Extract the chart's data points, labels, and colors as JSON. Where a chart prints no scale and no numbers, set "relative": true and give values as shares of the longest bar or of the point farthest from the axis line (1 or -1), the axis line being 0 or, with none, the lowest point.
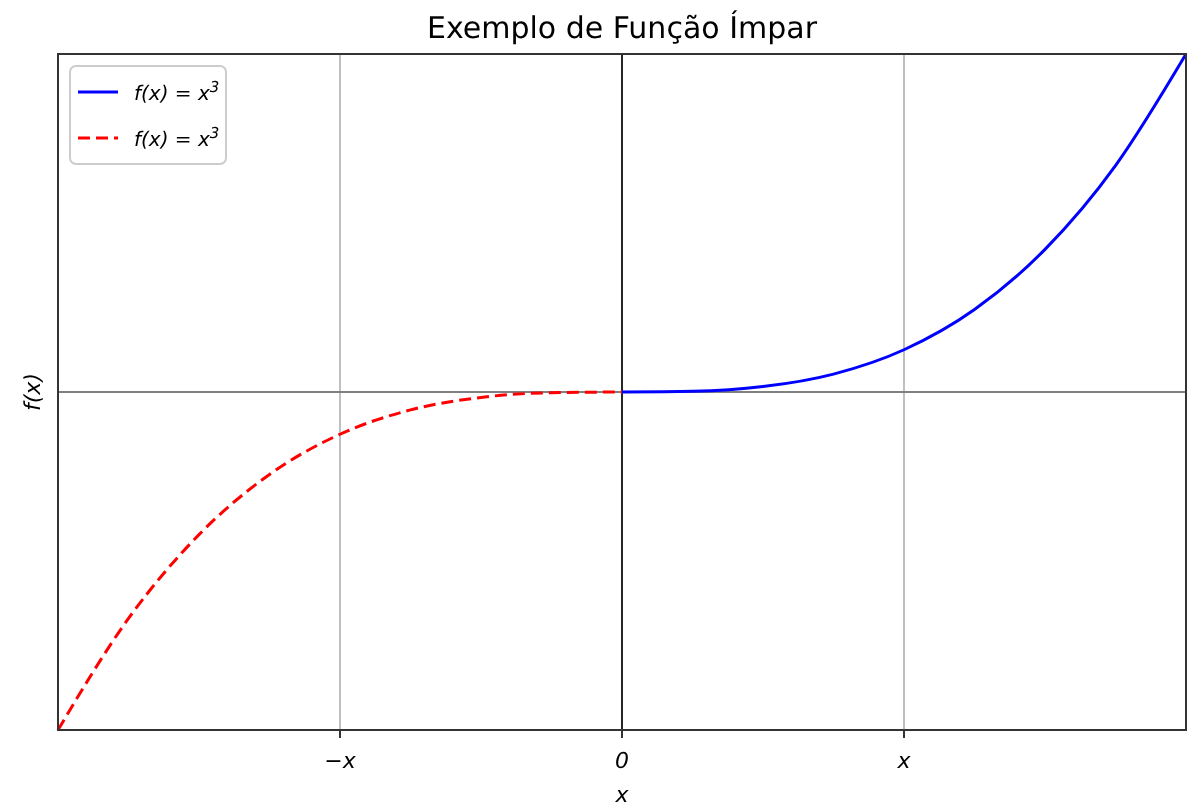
{
  "chart_data": {
    "type": "line",
    "title": "Exemplo de Função Ímpar",
    "xlabel": "x",
    "ylabel": "f(x)",
    "relative": true,
    "categories": [
      null,
      null,
      null,
      null,
      "−x",
      null,
      null,
      null,
      "0",
      null,
      null,
      null,
      "x",
      null,
      null,
      null,
      null
    ],
    "series": [
      {
        "name": "f(x) = x$^{3}$",
        "color": "#0000ff",
        "line_style": "solid",
        "values": [
          null,
          null,
          null,
          null,
          null,
          null,
          null,
          null,
          0,
          0.002,
          0.016,
          0.053,
          0.125,
          0.244,
          0.422,
          0.67,
          1
        ]
      },
      {
        "name": "f(x) = x$^{3}$",
        "color": "#ff0000",
        "line_style": "dashed",
        "values": [
          -1,
          -0.67,
          -0.422,
          -0.244,
          -0.125,
          -0.053,
          -0.016,
          -0.002,
          0,
          null,
          null,
          null,
          null,
          null,
          null,
          null,
          null
        ]
      }
    ],
    "grid": "x",
    "legend": "top left",
    "tick_labels": "x",
    "ref_lines": [
      {
        "axis": "x",
        "value": "0",
        "color": "#000000"
      },
      {
        "axis": "y",
        "value": 0,
        "color": "#808080"
      }
    ]
  }
}
